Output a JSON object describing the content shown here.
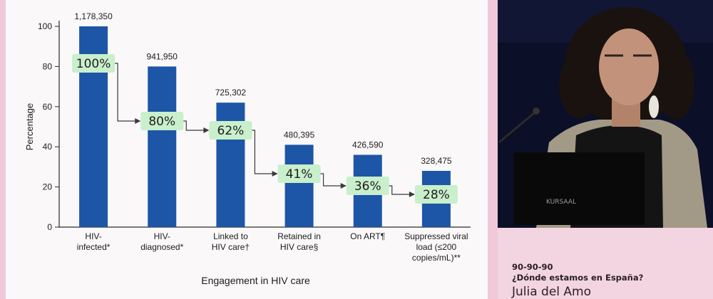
{
  "chart_data": {
    "type": "bar",
    "ylabel": "Percentage",
    "xlabel": "Engagement in HIV care",
    "ylim": [
      0,
      100
    ],
    "yticks": [
      0,
      20,
      40,
      60,
      80,
      100
    ],
    "categories": [
      [
        "HIV-",
        "infected*"
      ],
      [
        "HIV-",
        "diagnosed*"
      ],
      [
        "Linked to",
        "HIV care†"
      ],
      [
        "Retained in",
        "HIV care§"
      ],
      [
        "On ART¶"
      ],
      [
        "Suppressed viral",
        "load (≤200",
        "copies/mL)**"
      ]
    ],
    "values": [
      100,
      80,
      62,
      41,
      36,
      28
    ],
    "count_labels": [
      "1,178,350",
      "941,950",
      "725,302",
      "480,395",
      "426,590",
      "328,475"
    ],
    "percent_labels": [
      "100%",
      "80%",
      "62%",
      "41%",
      "36%",
      "28%"
    ],
    "colors": {
      "bar": "#1d56a6",
      "callout": "#c9efcc",
      "connector": "#3a3a3a"
    }
  },
  "caption": {
    "line1": "90-90-90",
    "line2": "¿Dónde estamos en España?",
    "line3": "Julia del Amo"
  }
}
